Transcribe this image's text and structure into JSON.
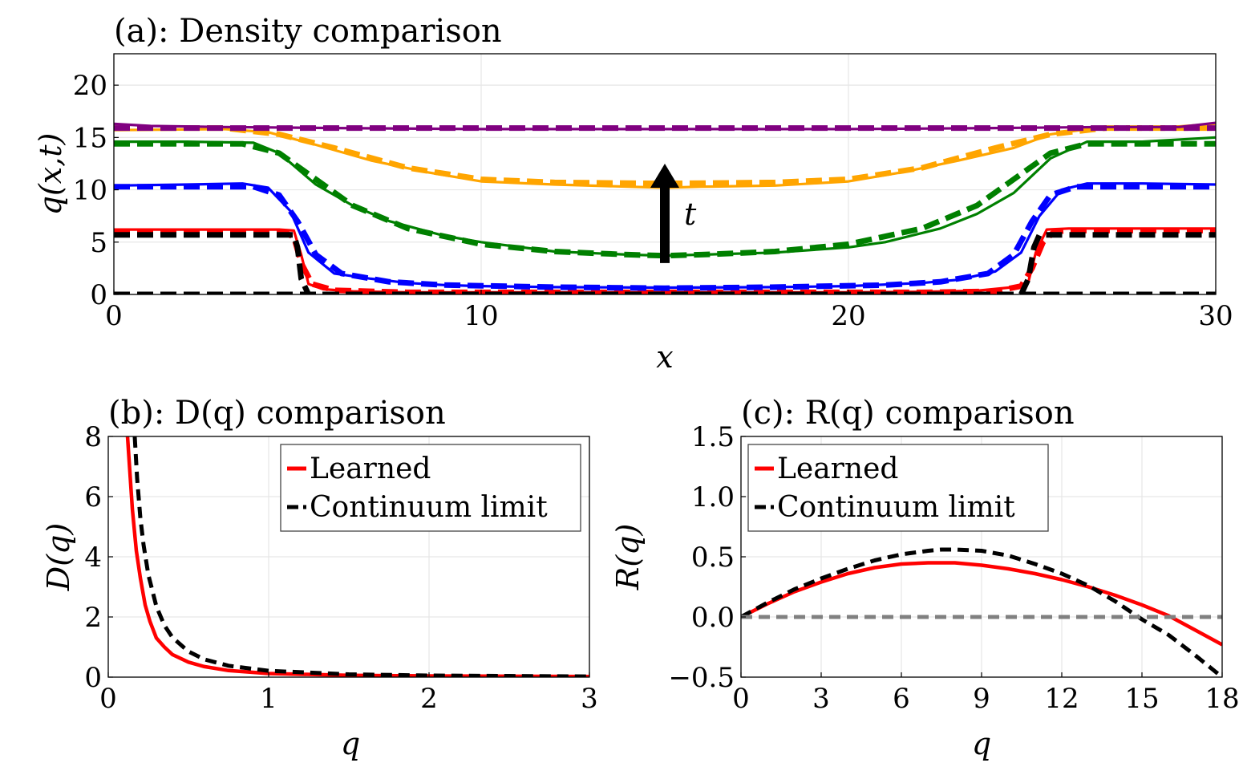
{
  "chart_data": [
    {
      "id": "a",
      "type": "line",
      "title": "(a): Density comparison",
      "xlabel": "x",
      "ylabel": "q(x,t)",
      "xlim": [
        0,
        30
      ],
      "ylim": [
        0,
        23
      ],
      "xticks": [
        0,
        10,
        20,
        30
      ],
      "yticks": [
        0,
        5,
        10,
        15,
        20
      ],
      "grid": true,
      "annotation": {
        "label": "t",
        "x": 15,
        "y_from": 3,
        "y_to": 12.5
      },
      "series": [
        {
          "color": "#ff0000",
          "style": "solid",
          "x": [
            0,
            4.5,
            4.9,
            5.1,
            5.3,
            5.7,
            6.5,
            8,
            10,
            15,
            20,
            22,
            23.5,
            24.5,
            24.9,
            25.1,
            25.4,
            26,
            30
          ],
          "y": [
            6.2,
            6.2,
            6.1,
            3.8,
            1.0,
            0.5,
            0.3,
            0.2,
            0.2,
            0.2,
            0.2,
            0.25,
            0.35,
            0.7,
            1.2,
            4.0,
            6.2,
            6.3,
            6.3
          ]
        },
        {
          "color": "#ff0000",
          "style": "dashed",
          "x": [
            0,
            4.6,
            4.9,
            5.1,
            5.4,
            6,
            8,
            15,
            22,
            24,
            24.7,
            25.0,
            25.3,
            25.6,
            26,
            30
          ],
          "y": [
            6.0,
            6.0,
            5.5,
            3.0,
            1.0,
            0.4,
            0.2,
            0.2,
            0.2,
            0.3,
            0.8,
            2.5,
            5.0,
            6.0,
            6.1,
            6.1
          ]
        },
        {
          "color": "#000000",
          "style": "dashed",
          "x": [
            0,
            4.9,
            5.0,
            5.1,
            5.3,
            30
          ],
          "y": [
            5.7,
            5.7,
            4.5,
            1.5,
            0,
            0
          ]
        },
        {
          "color": "#000000",
          "style": "dashed",
          "x": [
            0,
            24.7,
            24.9,
            25.05,
            25.2,
            30
          ],
          "y": [
            0,
            0,
            1.5,
            4.5,
            5.7,
            5.7
          ]
        },
        {
          "color": "#0000ff",
          "style": "solid",
          "x": [
            0,
            2,
            3.5,
            4.2,
            4.8,
            5.3,
            6,
            7,
            8,
            9,
            10,
            12,
            15,
            18,
            20,
            22,
            23,
            24,
            24.7,
            25.2,
            25.8,
            26.5,
            28,
            30
          ],
          "y": [
            10.4,
            10.5,
            10.6,
            10.2,
            8.0,
            4.0,
            2.0,
            1.5,
            1.1,
            0.9,
            0.8,
            0.7,
            0.65,
            0.7,
            0.8,
            1.1,
            1.4,
            2.2,
            4.0,
            7.5,
            10.0,
            10.6,
            10.6,
            10.5
          ]
        },
        {
          "color": "#0000ff",
          "style": "dashed",
          "x": [
            0,
            3.8,
            4.5,
            5.0,
            5.5,
            6.2,
            7.5,
            9,
            12,
            15,
            18,
            21,
            22.5,
            23.8,
            24.5,
            25.0,
            25.5,
            26.2,
            30
          ],
          "y": [
            10.3,
            10.3,
            9.5,
            7.0,
            3.8,
            2.0,
            1.2,
            0.9,
            0.7,
            0.6,
            0.7,
            0.9,
            1.2,
            2.0,
            3.8,
            7.0,
            9.5,
            10.3,
            10.3
          ]
        },
        {
          "color": "#008000",
          "style": "solid",
          "x": [
            0,
            2,
            3.8,
            4.5,
            5.5,
            6.5,
            7.5,
            9,
            10,
            12,
            14,
            15,
            16,
            18,
            20,
            21,
            22.5,
            23.5,
            24.5,
            25.5,
            26.5,
            28,
            30
          ],
          "y": [
            14.6,
            14.6,
            14.5,
            13.5,
            10.5,
            8.5,
            7.0,
            5.6,
            5.0,
            4.1,
            3.8,
            3.7,
            3.8,
            4.0,
            4.5,
            5.0,
            6.3,
            7.7,
            9.7,
            13.0,
            14.6,
            14.6,
            15.0
          ]
        },
        {
          "color": "#008000",
          "style": "dashed",
          "x": [
            0,
            3.5,
            4.5,
            5.5,
            6.5,
            8,
            10,
            12,
            14,
            15,
            16,
            18,
            20,
            22,
            23.5,
            24.5,
            25.5,
            26.5,
            30
          ],
          "y": [
            14.4,
            14.4,
            13.5,
            11.0,
            8.5,
            6.3,
            4.8,
            4.1,
            3.8,
            3.7,
            3.8,
            4.1,
            4.8,
            6.3,
            8.5,
            11.0,
            13.5,
            14.4,
            14.4
          ]
        },
        {
          "color": "#ffa500",
          "style": "solid",
          "x": [
            0,
            3,
            4.2,
            5.5,
            7,
            8.5,
            10,
            12,
            14,
            15,
            16,
            18,
            20,
            21.5,
            23,
            24.5,
            25.5,
            26.5,
            28,
            30
          ],
          "y": [
            15.7,
            15.8,
            15.5,
            14.3,
            12.8,
            11.7,
            10.8,
            10.5,
            10.3,
            10.2,
            10.3,
            10.4,
            10.8,
            11.7,
            12.8,
            14.0,
            15.3,
            15.8,
            15.8,
            16.3
          ]
        },
        {
          "color": "#ffa500",
          "style": "dashed",
          "x": [
            0,
            3,
            4.5,
            6,
            8,
            10,
            12,
            15,
            18,
            20,
            22,
            24,
            25.5,
            27,
            30
          ],
          "y": [
            15.9,
            15.9,
            15.3,
            14.0,
            12.1,
            11.0,
            10.7,
            10.6,
            10.7,
            11.0,
            12.1,
            14.0,
            15.3,
            15.9,
            15.9
          ]
        },
        {
          "color": "#800080",
          "style": "solid",
          "x": [
            0,
            1,
            3,
            6,
            10,
            15,
            20,
            24,
            27,
            29,
            30
          ],
          "y": [
            16.3,
            16.1,
            16.0,
            15.9,
            15.8,
            15.8,
            15.8,
            15.9,
            16.0,
            16.0,
            16.4
          ]
        },
        {
          "color": "#800080",
          "style": "dashed",
          "x": [
            0,
            30
          ],
          "y": [
            15.9,
            15.9
          ]
        }
      ]
    },
    {
      "id": "b",
      "type": "line",
      "title": "(b): D(q) comparison",
      "xlabel": "q",
      "ylabel": "D(q)",
      "xlim": [
        0,
        3
      ],
      "ylim": [
        0,
        8
      ],
      "xticks": [
        0,
        1,
        2,
        3
      ],
      "yticks": [
        0,
        2,
        4,
        6,
        8
      ],
      "grid": true,
      "legend": "top-right",
      "series": [
        {
          "name": "Learned",
          "color": "#ff0000",
          "style": "solid",
          "x": [
            0.12,
            0.13,
            0.15,
            0.175,
            0.2,
            0.23,
            0.26,
            0.3,
            0.35,
            0.4,
            0.5,
            0.6,
            0.75,
            1.0,
            1.5,
            2.0,
            3.0
          ],
          "y": [
            8.0,
            7.2,
            5.6,
            4.2,
            3.3,
            2.4,
            1.85,
            1.3,
            1.0,
            0.75,
            0.5,
            0.35,
            0.22,
            0.12,
            0.06,
            0.04,
            0.02
          ]
        },
        {
          "name": "Continuum limit",
          "color": "#000000",
          "style": "dashed",
          "x": [
            0.165,
            0.18,
            0.2,
            0.22,
            0.25,
            0.3,
            0.35,
            0.4,
            0.5,
            0.6,
            0.75,
            1.0,
            1.5,
            2.0,
            3.0
          ],
          "y": [
            8.0,
            6.6,
            5.3,
            4.4,
            3.4,
            2.35,
            1.72,
            1.32,
            0.85,
            0.59,
            0.38,
            0.21,
            0.094,
            0.053,
            0.024
          ]
        }
      ]
    },
    {
      "id": "c",
      "type": "line",
      "title": "(c): R(q) comparison",
      "xlabel": "q",
      "ylabel": "R(q)",
      "xlim": [
        0,
        18
      ],
      "ylim": [
        -0.5,
        1.5
      ],
      "xticks": [
        0,
        3,
        6,
        9,
        12,
        15,
        18
      ],
      "yticks": [
        "−0.5",
        "0.0",
        "0.5",
        "1.0",
        "1.5"
      ],
      "grid": true,
      "legend": "top-left",
      "series": [
        {
          "name": "Learned",
          "color": "#ff0000",
          "style": "solid",
          "x": [
            0,
            1,
            2,
            3,
            4,
            5,
            6,
            7,
            8,
            9,
            10,
            11,
            12,
            13,
            14,
            15,
            16,
            17,
            18
          ],
          "y": [
            0.0,
            0.11,
            0.21,
            0.29,
            0.36,
            0.41,
            0.44,
            0.45,
            0.45,
            0.43,
            0.4,
            0.36,
            0.31,
            0.25,
            0.18,
            0.1,
            0.01,
            -0.11,
            -0.23
          ]
        },
        {
          "name": "Continuum limit",
          "color": "#000000",
          "style": "dashed",
          "x": [
            0,
            1,
            2,
            3,
            4,
            5,
            6,
            7,
            7.5,
            8,
            9,
            10,
            11,
            12,
            13,
            14,
            15,
            16,
            17,
            18
          ],
          "y": [
            0.0,
            0.12,
            0.23,
            0.32,
            0.4,
            0.47,
            0.52,
            0.55,
            0.56,
            0.56,
            0.55,
            0.51,
            0.44,
            0.36,
            0.26,
            0.13,
            -0.02,
            -0.15,
            -0.32,
            -0.5
          ]
        },
        {
          "color": "#808080",
          "style": "dashed",
          "x": [
            0,
            18
          ],
          "y": [
            0,
            0
          ]
        }
      ]
    }
  ]
}
